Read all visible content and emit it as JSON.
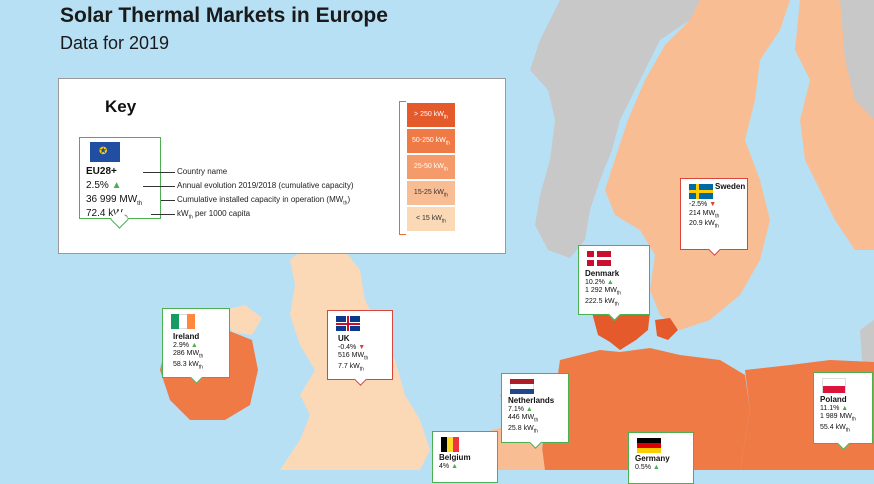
{
  "header": {
    "title": "Solar Thermal Markets in Europe",
    "subtitle": "Data for 2019"
  },
  "key": {
    "title": "Key",
    "example": {
      "name": "EU28+",
      "evolution": "2.5%",
      "capacity": "36 999 MW",
      "capacity_unit_sub": "th",
      "per_capita": "72.4 kW",
      "per_capita_unit_sub": "th",
      "trend": "up"
    },
    "descriptions": {
      "name": "Country name",
      "evolution": "Annual evolution 2019/2018 (cumulative capacity)",
      "capacity": "Cumulative installed capacity in operation (MW",
      "capacity_sub": "th",
      "capacity_end": ")",
      "per_capita": "kW",
      "per_capita_sub": "th",
      "per_capita_end": " per 1000 capita"
    },
    "legend": [
      {
        "label": "> 250 kW",
        "sub": "th",
        "color": "#e55a2b"
      },
      {
        "label": "50-250 kW",
        "sub": "th",
        "color": "#ef7a45"
      },
      {
        "label": "25-50 kW",
        "sub": "th",
        "color": "#f49a6b"
      },
      {
        "label": "15-25 kW",
        "sub": "th",
        "color": "#f8bd93"
      },
      {
        "label": "< 15 kW",
        "sub": "th",
        "color": "#fbd9b7"
      }
    ]
  },
  "countries": {
    "ireland": {
      "name": "Ireland",
      "evolution": "2.9%",
      "trend": "up",
      "capacity": "286 MW",
      "per_capita": "58.3 kW",
      "unit_sub": "th"
    },
    "uk": {
      "name": "UK",
      "evolution": "-0.4%",
      "trend": "down",
      "capacity": "516 MW",
      "per_capita": "7.7 kW",
      "unit_sub": "th"
    },
    "denmark": {
      "name": "Denmark",
      "evolution": "10.2%",
      "trend": "up",
      "capacity": "1 292 MW",
      "per_capita": "222.5 kW",
      "unit_sub": "th"
    },
    "sweden": {
      "name": "Sweden",
      "evolution": "-2.5%",
      "trend": "down",
      "capacity": "214 MW",
      "per_capita": "20.9 kW",
      "unit_sub": "th"
    },
    "netherlands": {
      "name": "Netherlands",
      "evolution": "7.1%",
      "trend": "up",
      "capacity": "446 MW",
      "per_capita": "25.8 kW",
      "unit_sub": "th"
    },
    "belgium": {
      "name": "Belgium",
      "evolution": "4%",
      "trend": "up"
    },
    "germany": {
      "name": "Germany",
      "evolution": "0.5%",
      "trend": "up"
    },
    "poland": {
      "name": "Poland",
      "evolution": "11.1%",
      "trend": "up",
      "capacity": "1 989 MW",
      "per_capita": "55.4 kW",
      "unit_sub": "th"
    }
  },
  "colors": {
    "sea": "#b7e0f5",
    "non_eu": "#c8c8c8",
    "tier_gt250": "#e55a2b",
    "tier_50_250": "#ef7a45",
    "tier_25_50": "#f49a6b",
    "tier_15_25": "#f8bd93",
    "tier_lt15": "#fbd9b7",
    "up": "#4caf50",
    "down": "#d9453b"
  }
}
